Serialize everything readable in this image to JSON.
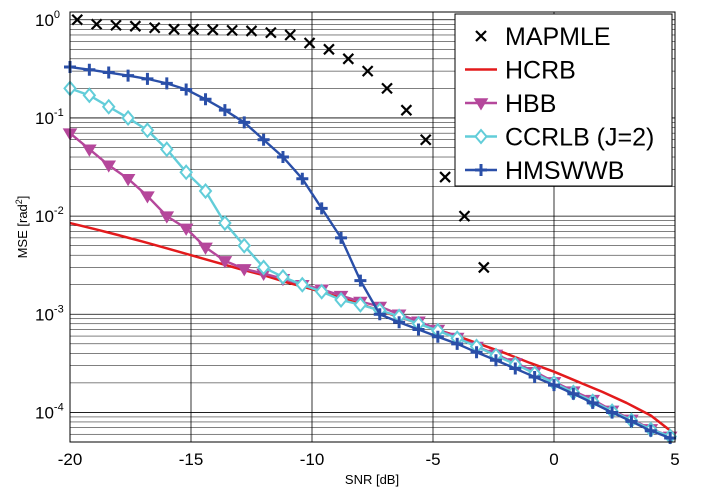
{
  "chart_data": {
    "type": "line",
    "title": "",
    "xlabel": "SNR [dB]",
    "ylabel": "MSE [rad",
    "ylabel_sup": "2",
    "ylabel_close": "]",
    "xlim": [
      -20,
      5
    ],
    "ylim": [
      5e-05,
      1.2
    ],
    "yscale": "log",
    "grid": true,
    "legend_position": "top-right",
    "x_ticks": [
      -20,
      -15,
      -10,
      -5,
      0,
      5
    ],
    "x_tick_labels": [
      "-20",
      "-15",
      "-10",
      "-5",
      "0",
      "5"
    ],
    "y_ticks": [
      1,
      0.1,
      0.01,
      0.001,
      0.0001
    ],
    "y_tick_labels": [
      {
        "base": "10",
        "exp": "0"
      },
      {
        "base": "10",
        "exp": "-1"
      },
      {
        "base": "10",
        "exp": "-2"
      },
      {
        "base": "10",
        "exp": "-3"
      },
      {
        "base": "10",
        "exp": "-4"
      }
    ],
    "series": [
      {
        "name": "MAPMLE",
        "color": "#000000",
        "marker": "x",
        "line": false,
        "x": [
          -19.7,
          -18.9,
          -18.1,
          -17.3,
          -16.5,
          -15.7,
          -14.9,
          -14.1,
          -13.3,
          -12.5,
          -11.7,
          -10.9,
          -10.1,
          -9.3,
          -8.5,
          -7.7,
          -6.9,
          -6.1,
          -5.3,
          -4.5,
          -3.7,
          -2.9
        ],
        "y": [
          1.0,
          0.9,
          0.88,
          0.86,
          0.83,
          0.8,
          0.8,
          0.79,
          0.78,
          0.77,
          0.74,
          0.7,
          0.58,
          0.5,
          0.4,
          0.3,
          0.2,
          0.12,
          0.06,
          0.025,
          0.01,
          0.003
        ]
      },
      {
        "name": "HCRB",
        "color": "#e31a1c",
        "marker": "none",
        "line": true,
        "x": [
          -20,
          -19,
          -18,
          -17,
          -16,
          -15,
          -14,
          -13,
          -12,
          -11,
          -10,
          -9,
          -8,
          -7,
          -6,
          -5,
          -4,
          -3,
          -2,
          -1,
          0,
          1,
          2,
          3,
          4,
          5
        ],
        "y": [
          0.0085,
          0.0074,
          0.0064,
          0.0055,
          0.0047,
          0.004,
          0.0034,
          0.0029,
          0.0025,
          0.0021,
          0.0018,
          0.00152,
          0.00127,
          0.00105,
          0.00087,
          0.00072,
          0.0006,
          0.00049,
          0.0004,
          0.00032,
          0.00026,
          0.000205,
          0.000162,
          0.000125,
          9.3e-05,
          6e-05
        ]
      },
      {
        "name": "HBB",
        "color": "#b5479b",
        "marker": "triangle",
        "line": true,
        "x": [
          -20,
          -19.2,
          -18.4,
          -17.6,
          -16.8,
          -16,
          -15.2,
          -14.4,
          -13.6,
          -12.8,
          -12,
          -11.2,
          -10.4,
          -9.6,
          -8.8,
          -8,
          -7.2,
          -6.4,
          -5.6,
          -4.8,
          -4,
          -3.2,
          -2.4,
          -1.6,
          -0.8,
          0,
          0.8,
          1.6,
          2.4,
          3.2,
          4,
          4.8
        ],
        "y": [
          0.07,
          0.048,
          0.033,
          0.024,
          0.016,
          0.01,
          0.0075,
          0.0048,
          0.0035,
          0.0029,
          0.0026,
          0.0023,
          0.002,
          0.0018,
          0.00155,
          0.00135,
          0.0012,
          0.001,
          0.00085,
          0.0007,
          0.00058,
          0.00047,
          0.00039,
          0.00032,
          0.00026,
          0.000205,
          0.000165,
          0.000135,
          0.000105,
          8.5e-05,
          6.8e-05,
          5.7e-05
        ]
      },
      {
        "name": "CCRLB (J=2)",
        "color": "#62cdd9",
        "marker": "diamond",
        "line": true,
        "x": [
          -20,
          -19.2,
          -18.4,
          -17.6,
          -16.8,
          -16,
          -15.2,
          -14.4,
          -13.6,
          -12.8,
          -12,
          -11.2,
          -10.4,
          -9.6,
          -8.8,
          -8,
          -7.2,
          -6.4,
          -5.6,
          -4.8,
          -4,
          -3.2,
          -2.4,
          -1.6,
          -0.8,
          0,
          0.8,
          1.6,
          2.4,
          3.2,
          4,
          4.8
        ],
        "y": [
          0.2,
          0.17,
          0.13,
          0.1,
          0.075,
          0.048,
          0.028,
          0.018,
          0.0085,
          0.005,
          0.003,
          0.0024,
          0.002,
          0.0017,
          0.0014,
          0.00125,
          0.0011,
          0.00095,
          0.0008,
          0.00068,
          0.00057,
          0.00047,
          0.00038,
          0.00031,
          0.00025,
          0.0002,
          0.00016,
          0.00013,
          0.000103,
          8.3e-05,
          6.7e-05,
          5.7e-05
        ]
      },
      {
        "name": "HMSWWB",
        "color": "#2a4fa8",
        "marker": "plus",
        "line": true,
        "x": [
          -20,
          -19.2,
          -18.4,
          -17.6,
          -16.8,
          -16,
          -15.2,
          -14.4,
          -13.6,
          -12.8,
          -12,
          -11.2,
          -10.4,
          -9.6,
          -8.8,
          -8,
          -7.2,
          -6.4,
          -5.6,
          -4.8,
          -4,
          -3.2,
          -2.4,
          -1.6,
          -0.8,
          0,
          0.8,
          1.6,
          2.4,
          3.2,
          4,
          4.8
        ],
        "y": [
          0.33,
          0.31,
          0.29,
          0.27,
          0.25,
          0.225,
          0.195,
          0.155,
          0.12,
          0.09,
          0.06,
          0.04,
          0.024,
          0.012,
          0.006,
          0.0022,
          0.001,
          0.00083,
          0.0007,
          0.00059,
          0.0005,
          0.00041,
          0.00034,
          0.00028,
          0.00023,
          0.00019,
          0.000155,
          0.000125,
          0.0001,
          8.1e-05,
          6.5e-05,
          5.5e-05
        ]
      }
    ]
  }
}
